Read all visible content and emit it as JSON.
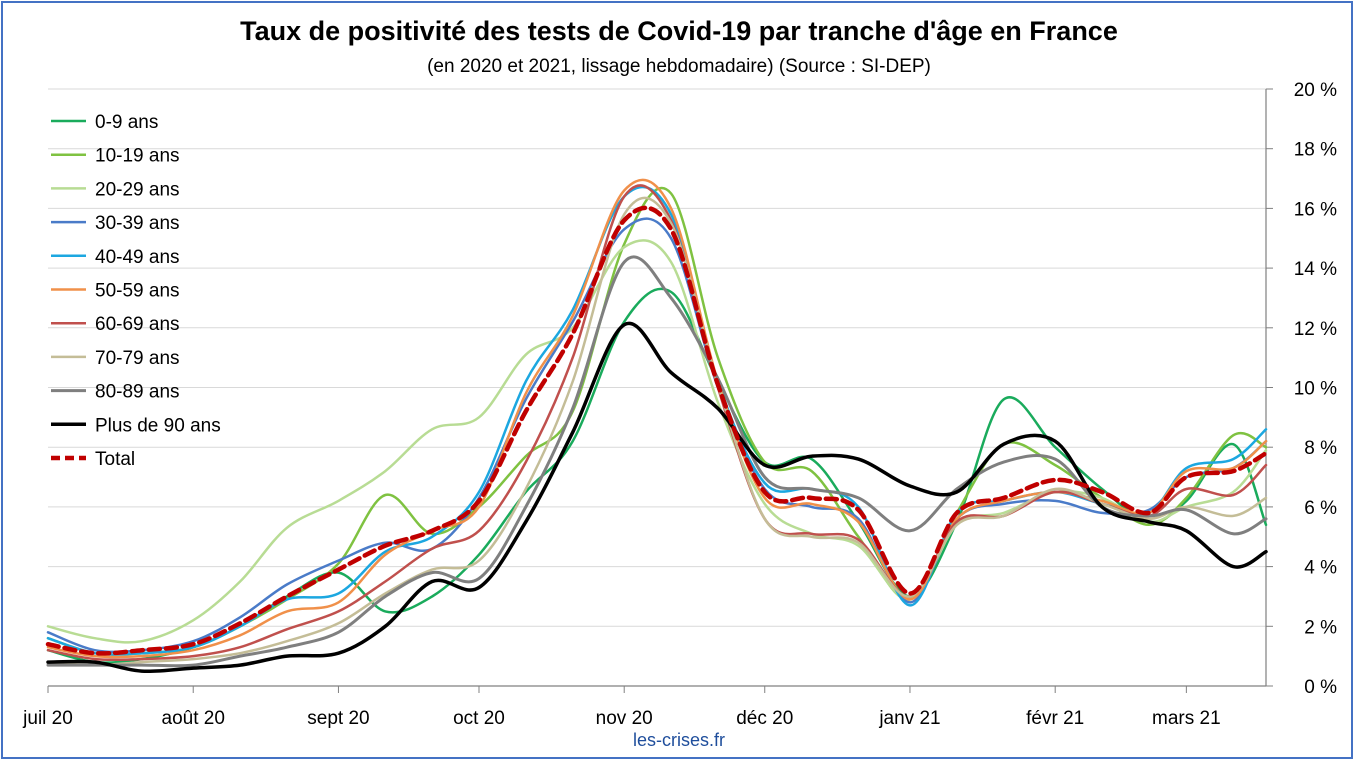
{
  "chart_data": {
    "type": "line",
    "title": "Taux de positivité des tests de Covid-19 par tranche d'âge en France",
    "subtitle": "(en 2020 et 2021, lissage hebdomadaire) (Source : SI-DEP)",
    "source_text": "les-crises.fr",
    "x_ticks": [
      "juil 20",
      "août 20",
      "sept 20",
      "oct 20",
      "nov 20",
      "déc 20",
      "janv 21",
      "févr 21",
      "mars 21"
    ],
    "x_tick_days": [
      0,
      31,
      62,
      92,
      123,
      153,
      184,
      215,
      243
    ],
    "x": [
      0,
      10,
      20,
      31,
      41,
      51,
      62,
      72,
      82,
      92,
      102,
      112,
      123,
      133,
      143,
      153,
      163,
      173,
      184,
      194,
      204,
      215,
      225,
      235,
      243,
      253,
      260
    ],
    "xlim": [
      0,
      260
    ],
    "ylim": [
      0,
      20
    ],
    "y_ticks": [
      "0 %",
      "2 %",
      "4 %",
      "6 %",
      "8 %",
      "10 %",
      "12 %",
      "14 %",
      "16 %",
      "18 %",
      "20 %"
    ],
    "y_axis_position": "right",
    "grid": true,
    "legend_position": "top-left",
    "series": [
      {
        "name": "0-9 ans",
        "color": "#1aab5c",
        "width": 2.5,
        "dash": "",
        "values": [
          1.2,
          0.8,
          0.9,
          1.3,
          2.0,
          3.0,
          3.8,
          2.5,
          3.0,
          4.4,
          6.5,
          8.2,
          12.2,
          13.2,
          10.2,
          7.5,
          7.6,
          5.5,
          3.0,
          5.5,
          9.6,
          8.0,
          6.6,
          5.5,
          6.2,
          8.1,
          5.4
        ]
      },
      {
        "name": "10-19 ans",
        "color": "#7fc241",
        "width": 2.5,
        "dash": "",
        "values": [
          1.6,
          1.1,
          1.1,
          1.3,
          2.0,
          2.9,
          4.1,
          6.4,
          5.1,
          6.0,
          7.7,
          9.2,
          14.8,
          16.5,
          11.0,
          7.5,
          7.2,
          5.0,
          2.9,
          5.8,
          8.1,
          7.4,
          6.3,
          5.4,
          6.3,
          8.4,
          8.0
        ]
      },
      {
        "name": "20-29 ans",
        "color": "#b8dc94",
        "width": 2.5,
        "dash": "",
        "values": [
          2.0,
          1.6,
          1.5,
          2.2,
          3.5,
          5.3,
          6.2,
          7.2,
          8.6,
          9.0,
          11.1,
          12.0,
          14.7,
          14.2,
          9.5,
          6.1,
          5.1,
          4.7,
          2.9,
          5.4,
          5.8,
          6.5,
          6.3,
          5.5,
          6.0,
          6.5,
          7.9
        ]
      },
      {
        "name": "30-39 ans",
        "color": "#4a7bc8",
        "width": 2.5,
        "dash": "",
        "values": [
          1.8,
          1.2,
          1.2,
          1.5,
          2.3,
          3.4,
          4.2,
          4.8,
          4.6,
          6.3,
          9.6,
          12.2,
          15.3,
          15.0,
          10.0,
          6.6,
          6.0,
          5.6,
          2.8,
          5.6,
          6.1,
          6.2,
          5.8,
          5.9,
          7.0,
          7.3,
          8.2
        ]
      },
      {
        "name": "40-49 ans",
        "color": "#1ca7e0",
        "width": 2.5,
        "dash": "",
        "values": [
          1.6,
          1.1,
          1.1,
          1.3,
          2.0,
          2.9,
          3.1,
          4.5,
          5.0,
          6.5,
          10.2,
          12.6,
          16.4,
          15.8,
          10.2,
          6.8,
          6.6,
          6.0,
          2.7,
          5.8,
          6.2,
          6.5,
          6.1,
          5.8,
          7.3,
          7.6,
          8.6
        ]
      },
      {
        "name": "50-59 ans",
        "color": "#f0904a",
        "width": 2.5,
        "dash": "",
        "values": [
          1.3,
          1.0,
          1.0,
          1.2,
          1.7,
          2.5,
          2.8,
          4.4,
          5.2,
          6.0,
          9.8,
          12.4,
          16.6,
          16.0,
          10.2,
          6.3,
          6.1,
          5.5,
          2.9,
          5.6,
          6.2,
          6.5,
          6.2,
          5.8,
          7.2,
          7.3,
          8.2
        ]
      },
      {
        "name": "60-69 ans",
        "color": "#c0504d",
        "width": 2.5,
        "dash": "",
        "values": [
          1.2,
          0.9,
          0.9,
          1.0,
          1.3,
          1.9,
          2.5,
          3.5,
          4.6,
          5.2,
          7.5,
          11.0,
          16.4,
          15.6,
          10.0,
          5.6,
          5.1,
          4.9,
          3.0,
          5.5,
          5.7,
          6.5,
          6.1,
          5.7,
          6.6,
          6.4,
          7.4
        ]
      },
      {
        "name": "70-79 ans",
        "color": "#c4bd97",
        "width": 2.5,
        "dash": "",
        "values": [
          0.8,
          0.7,
          0.8,
          0.9,
          1.1,
          1.5,
          2.1,
          3.1,
          3.9,
          4.2,
          6.6,
          10.2,
          15.8,
          15.5,
          10.1,
          5.6,
          5.0,
          4.8,
          3.0,
          5.4,
          5.7,
          6.6,
          6.1,
          5.6,
          6.0,
          5.7,
          6.3
        ]
      },
      {
        "name": "80-89 ans",
        "color": "#7f7f7f",
        "width": 3,
        "dash": "",
        "values": [
          0.7,
          0.7,
          0.7,
          0.7,
          1.0,
          1.3,
          1.8,
          3.0,
          3.8,
          3.6,
          6.0,
          9.3,
          14.2,
          13.0,
          10.3,
          7.0,
          6.6,
          6.3,
          5.2,
          6.6,
          7.5,
          7.6,
          6.0,
          5.7,
          5.9,
          5.1,
          5.6
        ]
      },
      {
        "name": "Plus de 90 ans",
        "color": "#000000",
        "width": 3.5,
        "dash": "",
        "values": [
          0.8,
          0.8,
          0.5,
          0.6,
          0.7,
          1.0,
          1.1,
          2.0,
          3.5,
          3.3,
          5.5,
          8.5,
          12.1,
          10.5,
          9.3,
          7.4,
          7.7,
          7.6,
          6.7,
          6.5,
          8.1,
          8.2,
          6.0,
          5.5,
          5.2,
          4.0,
          4.5
        ]
      },
      {
        "name": "Total",
        "color": "#c00000",
        "width": 4.5,
        "dash": "11 6",
        "values": [
          1.4,
          1.1,
          1.2,
          1.4,
          2.1,
          3.0,
          3.9,
          4.7,
          5.2,
          6.2,
          9.2,
          11.8,
          15.6,
          15.3,
          10.1,
          6.5,
          6.3,
          5.9,
          3.1,
          5.8,
          6.3,
          6.9,
          6.5,
          5.8,
          7.0,
          7.2,
          7.8
        ]
      }
    ]
  }
}
